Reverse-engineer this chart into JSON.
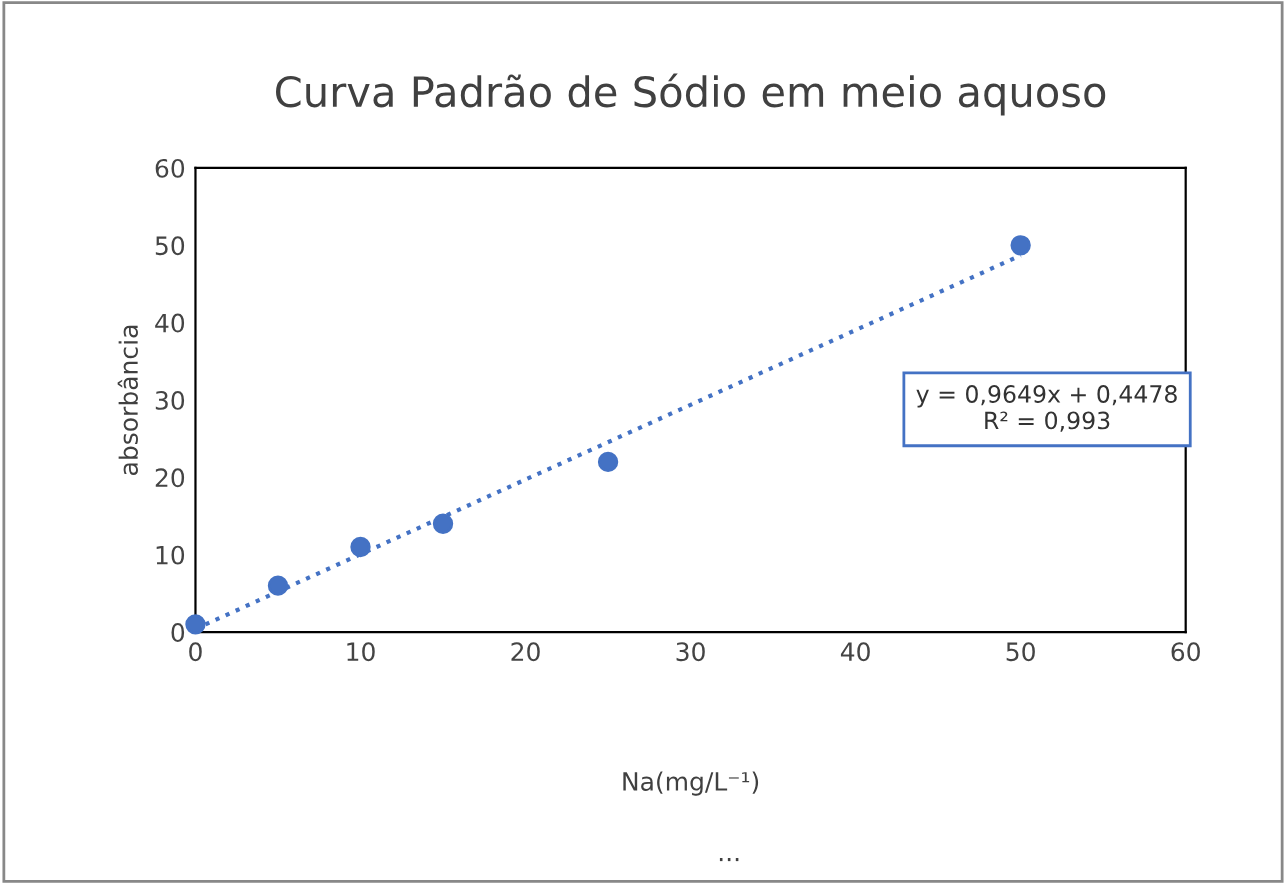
{
  "chart_data": {
    "type": "scatter",
    "title": "Curva Padrão de Sódio em meio aquoso",
    "xlabel": "Na(mg/L⁻¹)",
    "ylabel": "absorbância",
    "series": [
      {
        "color": "#4472c4",
        "x": [
          0,
          5,
          10,
          15,
          25,
          50
        ],
        "values": [
          1,
          6,
          11,
          14,
          22,
          50
        ],
        "marker": "circle"
      },
      {
        "type": "line",
        "color": "#4472c4",
        "x": [
          0,
          50
        ],
        "values": [
          0.4,
          48.7
        ],
        "line_style": "dotted",
        "marker": "none"
      }
    ],
    "xlim": [
      0,
      60
    ],
    "xticks": [
      0,
      10,
      20,
      30,
      40,
      50,
      60
    ],
    "ylim": [
      0,
      60
    ],
    "yticks": [
      0,
      10,
      20,
      30,
      40,
      50,
      60
    ],
    "grid": false,
    "legend": false,
    "annotations": [
      "y = 0,9649x + 0,4478\nR² = 0,993",
      "..."
    ]
  }
}
